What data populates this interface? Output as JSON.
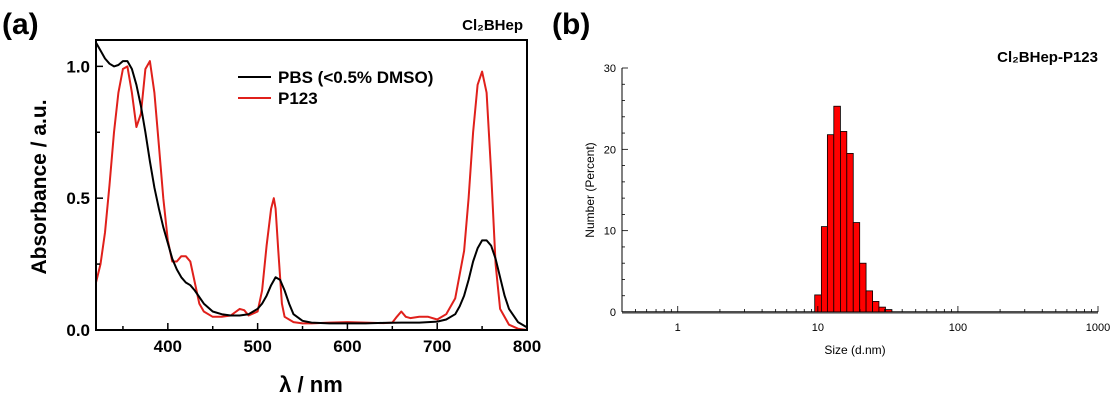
{
  "chart_data": [
    {
      "panel_label": "(a)",
      "type": "line",
      "title": "Cl₂BHep",
      "xlabel": "λ / nm",
      "ylabel": "Absorbance / a.u.",
      "xlim": [
        320,
        800
      ],
      "ylim": [
        0,
        1.1
      ],
      "xticks": [
        "400",
        "500",
        "600",
        "700",
        "800"
      ],
      "yticks": [
        "0.0",
        "0.5",
        "1.0"
      ],
      "legend_position": "top-center",
      "series": [
        {
          "name": "PBS (<0.5% DMSO)",
          "color": "#000000",
          "x": [
            320,
            325,
            330,
            335,
            340,
            345,
            350,
            355,
            360,
            365,
            370,
            375,
            380,
            385,
            390,
            395,
            400,
            405,
            410,
            415,
            420,
            425,
            430,
            440,
            450,
            460,
            470,
            480,
            490,
            500,
            505,
            510,
            515,
            520,
            525,
            530,
            535,
            540,
            550,
            560,
            580,
            600,
            620,
            640,
            660,
            680,
            700,
            710,
            720,
            725,
            730,
            735,
            740,
            745,
            750,
            755,
            760,
            765,
            770,
            775,
            780,
            790,
            800
          ],
          "y": [
            1.09,
            1.06,
            1.03,
            1.01,
            1.0,
            1.005,
            1.02,
            1.02,
            0.99,
            0.93,
            0.85,
            0.75,
            0.64,
            0.54,
            0.46,
            0.39,
            0.33,
            0.27,
            0.23,
            0.2,
            0.18,
            0.17,
            0.15,
            0.1,
            0.07,
            0.06,
            0.055,
            0.055,
            0.06,
            0.08,
            0.1,
            0.13,
            0.17,
            0.2,
            0.19,
            0.15,
            0.1,
            0.06,
            0.035,
            0.028,
            0.025,
            0.025,
            0.025,
            0.027,
            0.028,
            0.028,
            0.032,
            0.04,
            0.06,
            0.09,
            0.13,
            0.19,
            0.26,
            0.31,
            0.34,
            0.34,
            0.32,
            0.27,
            0.2,
            0.13,
            0.08,
            0.03,
            0.01
          ]
        },
        {
          "name": "P123",
          "color": "#e0201b",
          "x": [
            320,
            325,
            330,
            335,
            340,
            345,
            350,
            355,
            360,
            365,
            370,
            375,
            380,
            385,
            390,
            395,
            400,
            405,
            410,
            415,
            420,
            425,
            430,
            435,
            440,
            450,
            460,
            470,
            480,
            485,
            490,
            500,
            505,
            510,
            515,
            518,
            520,
            523,
            527,
            530,
            540,
            550,
            560,
            580,
            600,
            620,
            640,
            650,
            655,
            660,
            665,
            670,
            680,
            690,
            700,
            710,
            720,
            730,
            735,
            740,
            745,
            750,
            755,
            760,
            765,
            770,
            780,
            790,
            800
          ],
          "y": [
            0.18,
            0.25,
            0.37,
            0.55,
            0.75,
            0.9,
            0.99,
            1.0,
            0.9,
            0.77,
            0.82,
            0.99,
            1.02,
            0.9,
            0.7,
            0.5,
            0.34,
            0.26,
            0.26,
            0.28,
            0.28,
            0.26,
            0.18,
            0.1,
            0.07,
            0.05,
            0.05,
            0.055,
            0.08,
            0.075,
            0.055,
            0.07,
            0.15,
            0.32,
            0.46,
            0.5,
            0.46,
            0.3,
            0.1,
            0.05,
            0.03,
            0.025,
            0.025,
            0.028,
            0.03,
            0.028,
            0.026,
            0.028,
            0.05,
            0.07,
            0.05,
            0.045,
            0.05,
            0.05,
            0.04,
            0.06,
            0.12,
            0.3,
            0.5,
            0.75,
            0.93,
            0.98,
            0.9,
            0.6,
            0.25,
            0.08,
            0.02,
            0.005,
            0.0
          ]
        }
      ]
    },
    {
      "panel_label": "(b)",
      "type": "bar",
      "title": "Cl₂BHep-P123",
      "xlabel": "Size (d.nm)",
      "ylabel": "Number (Percent)",
      "x_scale": "log",
      "xlim": [
        0.4,
        1000
      ],
      "ylim": [
        0,
        30
      ],
      "xticks": [
        "1",
        "10",
        "100",
        "1000"
      ],
      "yticks": [
        "0",
        "10",
        "20",
        "30"
      ],
      "bar_color": "#ff0000",
      "bins": [
        {
          "lo": 9.5,
          "hi": 10.6,
          "value": 2.1
        },
        {
          "lo": 10.6,
          "hi": 11.7,
          "value": 10.5
        },
        {
          "lo": 11.7,
          "hi": 13.0,
          "value": 21.8
        },
        {
          "lo": 13.0,
          "hi": 14.5,
          "value": 25.3
        },
        {
          "lo": 14.5,
          "hi": 16.1,
          "value": 22.2
        },
        {
          "lo": 16.1,
          "hi": 17.9,
          "value": 19.5
        },
        {
          "lo": 17.9,
          "hi": 19.9,
          "value": 11.0
        },
        {
          "lo": 19.9,
          "hi": 22.1,
          "value": 6.0
        },
        {
          "lo": 22.1,
          "hi": 24.6,
          "value": 2.6
        },
        {
          "lo": 24.6,
          "hi": 27.3,
          "value": 1.3
        },
        {
          "lo": 27.3,
          "hi": 30.4,
          "value": 0.6
        },
        {
          "lo": 30.4,
          "hi": 33.8,
          "value": 0.3
        }
      ]
    }
  ]
}
